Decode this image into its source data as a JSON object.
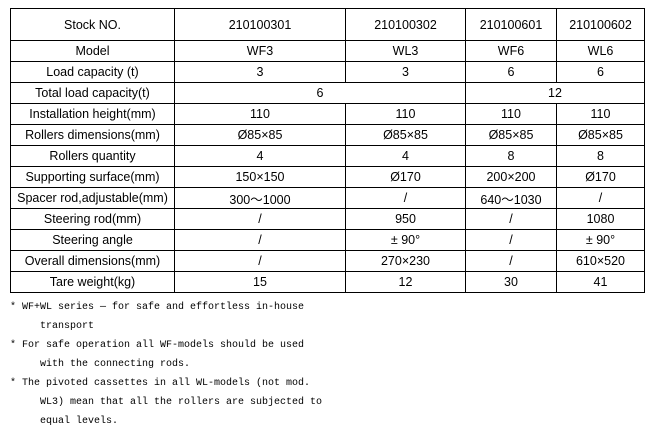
{
  "table": {
    "rows": [
      {
        "label": "Stock NO.",
        "cells": [
          "210100301",
          "210100302",
          "210100601",
          "210100602"
        ]
      },
      {
        "label": "Model",
        "cells": [
          "WF3",
          "WL3",
          "WF6",
          "WL6"
        ]
      },
      {
        "label": "Load capacity (t)",
        "cells": [
          "3",
          "3",
          "6",
          "6"
        ]
      },
      {
        "label": "Total load capacity(t)",
        "cells": [
          "6",
          "12"
        ]
      },
      {
        "label": "Installation height(mm)",
        "cells": [
          "110",
          "110",
          "110",
          "110"
        ]
      },
      {
        "label": "Rollers dimensions(mm)",
        "cells": [
          "Ø85×85",
          "Ø85×85",
          "Ø85×85",
          "Ø85×85"
        ]
      },
      {
        "label": "Rollers quantity",
        "cells": [
          "4",
          "4",
          "8",
          "8"
        ]
      },
      {
        "label": "Supporting surface(mm)",
        "cells": [
          "150×150",
          "Ø170",
          "200×200",
          "Ø170"
        ]
      },
      {
        "label": "Spacer rod,adjustable(mm)",
        "cells": [
          "300～1000",
          "/",
          "640～1030",
          "/"
        ]
      },
      {
        "label": "Steering rod(mm)",
        "cells": [
          "/",
          "950",
          "/",
          "1080"
        ]
      },
      {
        "label": "Steering angle",
        "cells": [
          "/",
          "± 90°",
          "/",
          "± 90°"
        ]
      },
      {
        "label": "Overall dimensions(mm)",
        "cells": [
          "/",
          "270×230",
          "/",
          "610×520"
        ]
      },
      {
        "label": "Tare weight(kg)",
        "cells": [
          "15",
          "12",
          "30",
          "41"
        ]
      }
    ]
  },
  "notes": [
    {
      "line1": "* WF+WL series — for safe and effortless in-house",
      "cont": [
        "transport"
      ]
    },
    {
      "line1": "* For safe operation all WF-models should be used",
      "cont": [
        "with the connecting rods."
      ]
    },
    {
      "line1": "* The pivoted cassettes in all WL-models (not mod.",
      "cont": [
        "WL3) mean that all the rollers are subjected to",
        "equal levels."
      ]
    }
  ]
}
